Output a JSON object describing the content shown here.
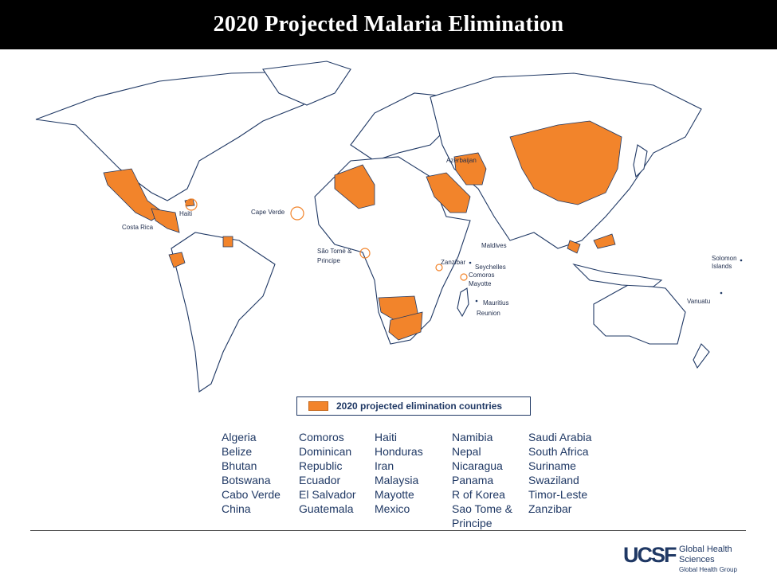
{
  "title": "2020 Projected Malaria Elimination",
  "colors": {
    "highlight": "#f2842b",
    "outline": "#1f3864",
    "header": "#000000"
  },
  "map_labels": {
    "haiti": "Haiti",
    "costa_rica": "Costa Rica",
    "cape_verde": "Cape Verde",
    "sao_tome_1": "São Tomé &",
    "sao_tome_2": "Principe",
    "azerbaijan": "Azerbaijan",
    "maldives": "Maldives",
    "zanzibar": "Zanzibar",
    "seychelles": "Seychelles",
    "comoros": "Comoros",
    "mayotte": "Mayotte",
    "mauritius": "Mauritius",
    "reunion": "Reunion",
    "solomon_1": "Solomon",
    "solomon_2": "Islands",
    "vanuatu": "Vanuatu"
  },
  "legend": {
    "label": "2020 projected elimination countries"
  },
  "countries": {
    "col1": [
      "Algeria",
      "Belize",
      "Bhutan",
      "Botswana",
      "Cabo Verde",
      "China"
    ],
    "col2": [
      "Comoros",
      "Dominican",
      "Republic",
      "Ecuador",
      "El Salvador",
      "Guatemala"
    ],
    "col3": [
      "Haiti",
      "Honduras",
      "Iran",
      "Malaysia",
      "Mayotte",
      "Mexico"
    ],
    "col4": [
      "Namibia",
      "Nepal",
      "Nicaragua",
      "Panama",
      "R of Korea",
      "Sao Tome &",
      "Principe"
    ],
    "col5": [
      "Saudi Arabia",
      "South Africa",
      "Suriname",
      "Swaziland",
      "Timor-Leste",
      "Zanzibar"
    ]
  },
  "logo": {
    "mark": "UCSF",
    "line1": "Global Health",
    "line2": "Sciences",
    "line3": "Global Health Group"
  }
}
